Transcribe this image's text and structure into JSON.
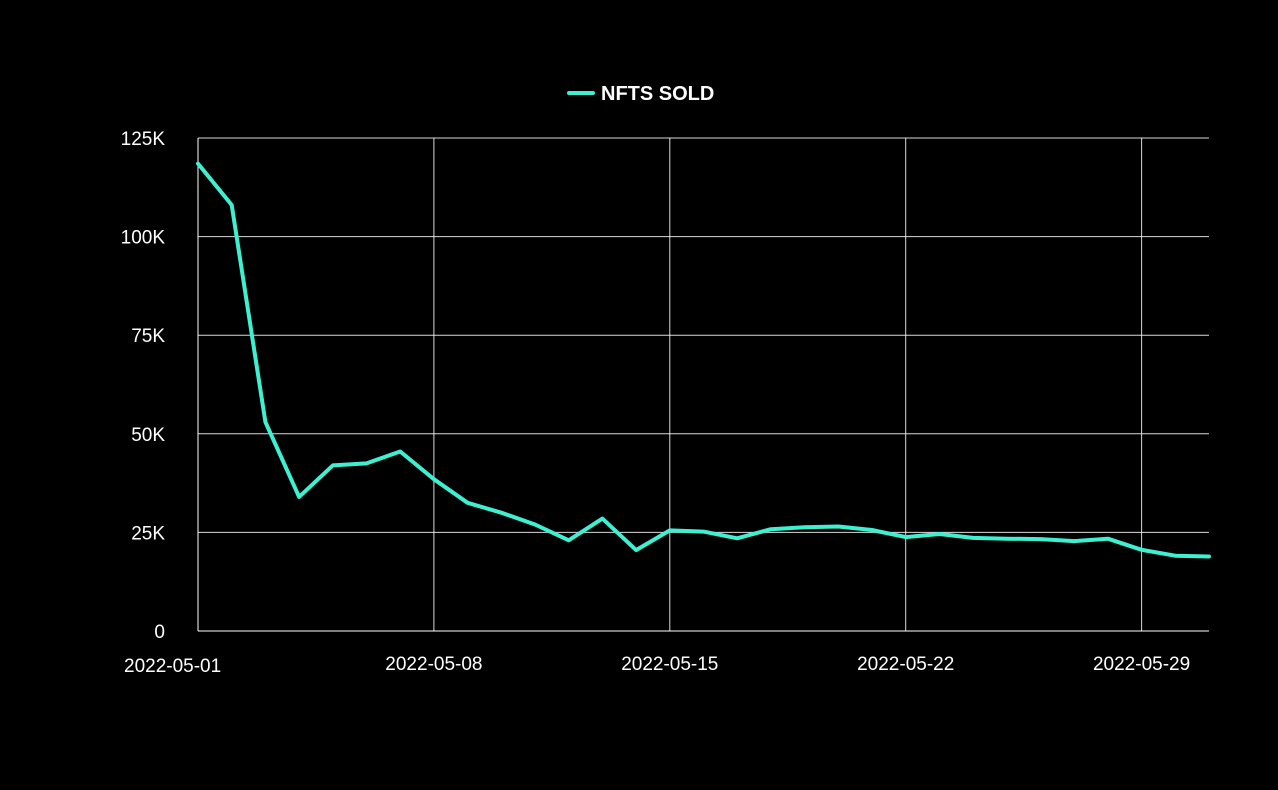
{
  "chart_data": {
    "type": "line",
    "title": "",
    "xlabel": "",
    "ylabel": "",
    "x": [
      "2022-05-01",
      "2022-05-02",
      "2022-05-03",
      "2022-05-04",
      "2022-05-05",
      "2022-05-06",
      "2022-05-07",
      "2022-05-08",
      "2022-05-09",
      "2022-05-10",
      "2022-05-11",
      "2022-05-12",
      "2022-05-13",
      "2022-05-14",
      "2022-05-15",
      "2022-05-16",
      "2022-05-17",
      "2022-05-18",
      "2022-05-19",
      "2022-05-20",
      "2022-05-21",
      "2022-05-22",
      "2022-05-23",
      "2022-05-24",
      "2022-05-25",
      "2022-05-26",
      "2022-05-27",
      "2022-05-28",
      "2022-05-29",
      "2022-05-30",
      "2022-05-31"
    ],
    "series": [
      {
        "name": "NFTS SOLD",
        "color": "#3ef0d2",
        "values": [
          118500,
          108000,
          53000,
          34000,
          42000,
          42500,
          45500,
          38500,
          32500,
          30000,
          27000,
          23000,
          28500,
          20500,
          25500,
          25200,
          23500,
          25800,
          26300,
          26500,
          25600,
          23800,
          24600,
          23600,
          23400,
          23300,
          22800,
          23400,
          20600,
          19100,
          18900
        ]
      }
    ],
    "x_ticks": [
      "2022-05-01",
      "2022-05-08",
      "2022-05-15",
      "2022-05-22",
      "2022-05-29"
    ],
    "y_ticks": [
      0,
      25000,
      50000,
      75000,
      100000,
      125000
    ],
    "y_tick_labels": [
      "0",
      "25K",
      "50K",
      "75K",
      "100K",
      "125K"
    ],
    "ylim": [
      0,
      125000
    ],
    "xlim": [
      "2022-05-01",
      "2022-05-31"
    ],
    "grid": true,
    "legend_position": "top-center",
    "background": "#000000",
    "text_color": "#ffffff"
  }
}
